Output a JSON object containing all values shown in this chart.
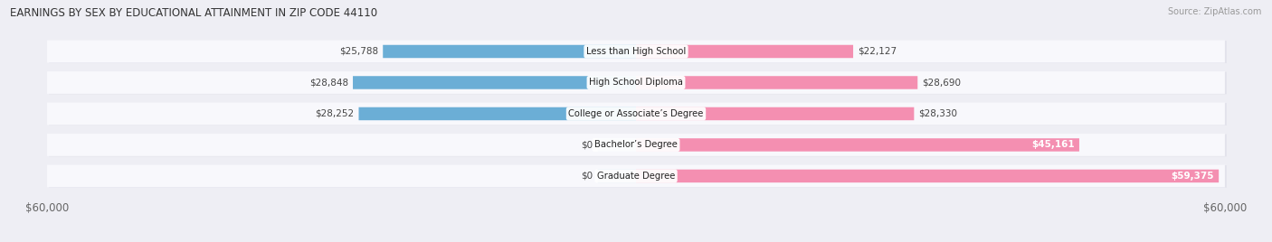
{
  "title": "EARNINGS BY SEX BY EDUCATIONAL ATTAINMENT IN ZIP CODE 44110",
  "source": "Source: ZipAtlas.com",
  "categories": [
    "Less than High School",
    "High School Diploma",
    "College or Associate’s Degree",
    "Bachelor’s Degree",
    "Graduate Degree"
  ],
  "male_values": [
    25788,
    28848,
    28252,
    0,
    0
  ],
  "female_values": [
    22127,
    28690,
    28330,
    45161,
    59375
  ],
  "male_labels": [
    "$25,788",
    "$28,848",
    "$28,252",
    "$0",
    "$0"
  ],
  "female_labels": [
    "$22,127",
    "$28,690",
    "$28,330",
    "$45,161",
    "$59,375"
  ],
  "max_value": 60000,
  "male_color": "#6baed6",
  "female_color": "#f48fb1",
  "female_color_bright": "#e91e8c",
  "male_stub_color": "#b8d4ea",
  "bg_color": "#eeeef4",
  "row_bg_color": "#f8f8fc",
  "row_shadow_color": "#d8d8e4",
  "axis_label_color": "#666666",
  "title_color": "#333333",
  "source_color": "#999999",
  "legend_male_color": "#6baed6",
  "legend_female_color": "#f48fb1",
  "female_inside_label_rows": [
    3,
    4
  ],
  "female_bold_rows": [
    3,
    4
  ]
}
